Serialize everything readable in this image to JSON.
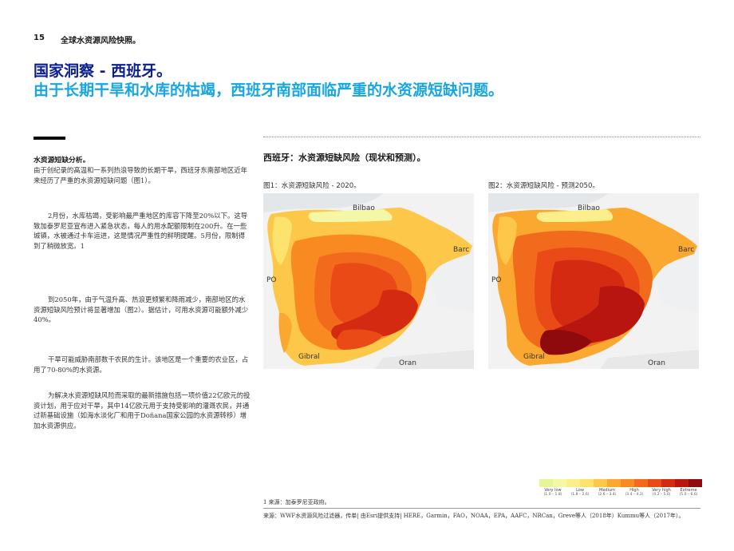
{
  "header": {
    "page_number": "15",
    "section_title": "全球水资源风险快照。"
  },
  "title": {
    "line1": "国家洞察 - 西班牙。",
    "line2": "由于长期干旱和水库的枯竭，西班牙南部面临严重的水资源短缺问题。"
  },
  "left": {
    "subhead": "水资源短缺分析。",
    "paragraphs": [
      "由于创纪录的高温和一系列热浪导致的长期干旱，西班牙东南部地区近年来经历了严重的水资源短缺问题（图1）。",
      "2月份，水库枯竭，受影响最严重地区的库容下降至20%以下。这导致加泰罗尼亚宣布进入紧急状态，每人的用水配额限制在200升。在一些城镇，水被通过卡车运进，这是情况严重性的鲜明提醒。5月份，限制得到了稍微放宽。1",
      "到2050年，由于气温升高、热浪更频繁和降雨减少，南部地区的水资源短缺风险预计将显著增加（图2）。据估计，可用水资源可能额外减少40%。",
      "干旱可能威胁南部数千农民的生计。该地区是一个重要的农业区，占用了70-80%的水资源。",
      "为解决水资源短缺风险而采取的最新措施包括一项价值22亿欧元的投资计划，用于应对干旱，其中14亿欧元用于支持受影响的灌溉农民，并通过新基础设施（如海水淡化厂和用于Doñana国家公园的水资源转移）增加水资源供应。"
    ]
  },
  "figures": {
    "heading": "西班牙：水资源短缺风险（现状和预测）。",
    "fig1_caption": "图1：水资源短缺风险 - 2020。",
    "fig2_caption": "图2：水资源短缺风险 - 预测2050。",
    "map_labels": {
      "bilbao": "Bilbao",
      "barc": "Barc",
      "gibral": "Gibral",
      "oran": "Oran",
      "po": "PO"
    }
  },
  "legend": [
    {
      "label": "Very low",
      "range": "(1.0 – 1.8)",
      "colors": [
        "#e6f59a",
        "#f3f7a6"
      ]
    },
    {
      "label": "Low",
      "range": "(1.8 – 2.6)",
      "colors": [
        "#fbef8c",
        "#fde26e"
      ]
    },
    {
      "label": "Medium",
      "range": "(2.6 – 3.4)",
      "colors": [
        "#fdc84a",
        "#fba830"
      ]
    },
    {
      "label": "High",
      "range": "(3.4 – 4.2)",
      "colors": [
        "#f98a22",
        "#f26a1c"
      ]
    },
    {
      "label": "Very high",
      "range": "(4.2 – 5.0)",
      "colors": [
        "#e94a16",
        "#d42a12"
      ]
    },
    {
      "label": "Extreme",
      "range": "(5.0 – 6.6)",
      "colors": [
        "#b81510",
        "#8e0a0c"
      ]
    }
  ],
  "footnote": "1 来源：加泰罗尼亚政府。",
  "source": "来源：WWF水资源风险过滤器，传单| 由Esri提供支持| HERE，Garmin，FAO，NOAA，EPA，AAFC，NRCan，Greve等人（2018年）Kummu等人（2017年）。"
}
